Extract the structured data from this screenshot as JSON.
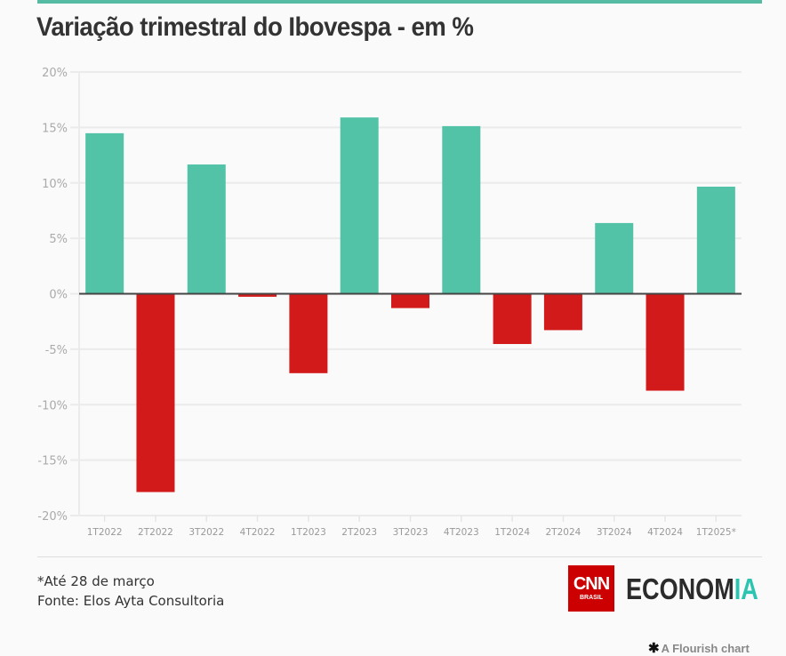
{
  "header": {
    "title": "Variação trimestral do Ibovespa - em %"
  },
  "colors": {
    "accent_rule": "#55bba2",
    "positive": "#52c3a6",
    "negative": "#d31a1a",
    "brand_red": "#cc0000",
    "brand_teal": "#2bc4b1"
  },
  "chart_data": {
    "type": "bar",
    "title": "Variação trimestral do Ibovespa - em %",
    "xlabel": "",
    "ylabel": "",
    "ylim": [
      -20,
      20
    ],
    "yticks": [
      20,
      15,
      10,
      5,
      0,
      -5,
      -10,
      -15,
      -20
    ],
    "ytick_labels": [
      "20%",
      "15%",
      "10%",
      "5%",
      "0%",
      "-5%",
      "-10%",
      "-15%",
      "-20%"
    ],
    "grid": true,
    "legend": "none",
    "categories": [
      "1T2022",
      "2T2022",
      "3T2022",
      "4T2022",
      "1T2023",
      "2T2023",
      "3T2023",
      "4T2023",
      "1T2024",
      "2T2024",
      "3T2024",
      "4T2024",
      "1T2025*"
    ],
    "values": [
      14.48,
      -17.88,
      11.66,
      -0.27,
      -7.16,
      15.9,
      -1.29,
      15.12,
      -4.53,
      -3.28,
      6.38,
      -8.74,
      9.66
    ]
  },
  "footer": {
    "note": "*Até 28 de março",
    "source": "Fonte: Elos Ayta Consultoria",
    "logo_cnn": "CNN",
    "logo_brasil": "BRASIL",
    "logo_economia_main": "ECONOM",
    "logo_economia_accent": "IA",
    "credit_icon": "✱",
    "credit": "A Flourish chart"
  }
}
